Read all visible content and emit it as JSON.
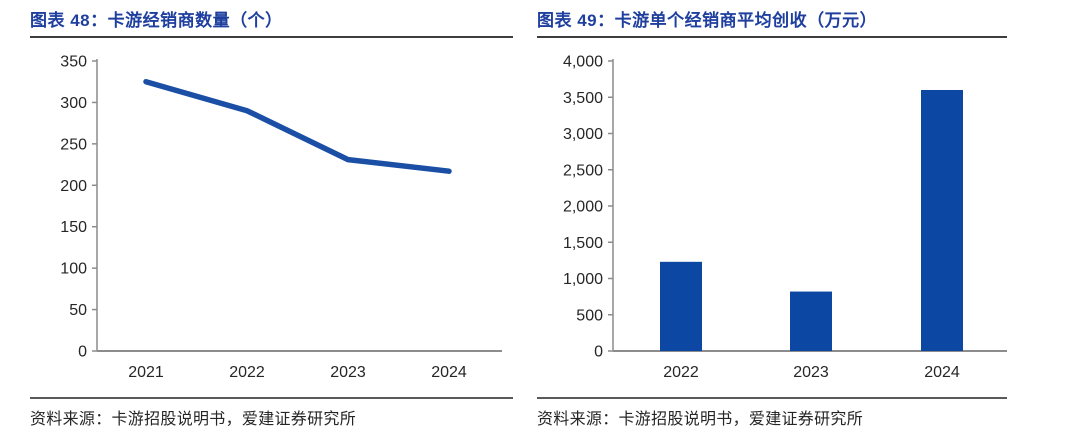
{
  "chart_data": [
    {
      "type": "line",
      "header": "图表 48：卡游经销商数量（个）",
      "title": "卡游经销商数量（个）",
      "categories": [
        "2021",
        "2022",
        "2023",
        "2024"
      ],
      "values": [
        325,
        290,
        231,
        217
      ],
      "ylim": [
        0,
        350
      ],
      "ytick_step": 50,
      "grid": false,
      "legend": "none",
      "series_color": "#1a4fa5",
      "source": "资料来源：卡游招股说明书，爱建证券研究所"
    },
    {
      "type": "bar",
      "header": "图表 49：卡游单个经销商平均创收（万元）",
      "title": "卡游单个经销商平均创收（万元）",
      "categories": [
        "2022",
        "2023",
        "2024"
      ],
      "values": [
        1230,
        820,
        3600
      ],
      "ylim": [
        0,
        4000
      ],
      "ytick_step": 500,
      "grid": false,
      "legend": "none",
      "series_color": "#0c47a3",
      "source": "资料来源：卡游招股说明书，爱建证券研究所"
    }
  ],
  "colors": {
    "header_blue": "#1e3f9e",
    "line_blue": "#1a4fa5",
    "bar_blue": "#0c47a3",
    "axis_gray": "#8c8c8c",
    "text_dark": "#262626",
    "title_rule": "#3d3d3d",
    "footer_rule": "#595959"
  }
}
